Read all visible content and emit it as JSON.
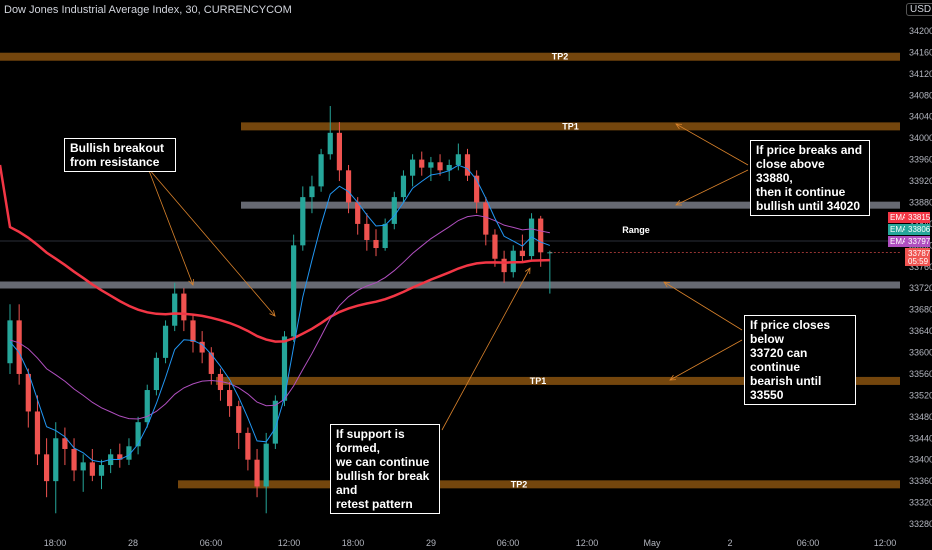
{
  "header": {
    "title": "Dow Jones Industrial Average Index, 30, CURRENCYCOM",
    "currency": "USD"
  },
  "colors": {
    "background": "#000000",
    "bull": "#26a69a",
    "bear": "#ef5350",
    "target_band": "#7a4a0e",
    "key_band": "#787b86",
    "ema_red": "#f23645",
    "ema_teal": "#2196f3",
    "ema_purple": "#b04fbf",
    "arrow": "#d9822b"
  },
  "annotations": {
    "breakout": "Bullish breakout\nfrom resistance",
    "breaks_above": "If price breaks and\nclose above 33880,\nthen it continue\nbullish until 34020",
    "closes_below": "If price closes below\n33720 can continue\nbearish until 33550",
    "support": "If support is formed,\nwe can continue\nbullish for break and\nretest pattern"
  },
  "chart_data": {
    "type": "candlestick",
    "title": "Dow Jones Industrial Average Index, 30, CURRENCYCOM",
    "ylim": [
      33260,
      34260
    ],
    "y_ticks": [
      34200,
      34160,
      34120,
      34080,
      34040,
      34000,
      33960,
      33920,
      33880,
      33840,
      33800,
      33760,
      33720,
      33680,
      33640,
      33600,
      33560,
      33520,
      33480,
      33440,
      33400,
      33360,
      33320,
      33280
    ],
    "x_ticks": [
      "18:00",
      "28",
      "06:00",
      "12:00",
      "18:00",
      "29",
      "06:00",
      "12:00",
      "May",
      "2",
      "06:00",
      "12:00"
    ],
    "grid": false,
    "levels": [
      {
        "label": "TP2",
        "value": 34152,
        "kind": "target",
        "from": "start"
      },
      {
        "label": "TP1",
        "value": 34022,
        "kind": "target",
        "from": "12:00"
      },
      {
        "label": "",
        "value": 33875,
        "kind": "key",
        "from": "12:00"
      },
      {
        "label": "Range",
        "value": 33808,
        "kind": "range",
        "from": "start"
      },
      {
        "label": "",
        "value": 33726,
        "kind": "key",
        "from": "start"
      },
      {
        "label": "TP1",
        "value": 33547,
        "kind": "target",
        "from": "06:00"
      },
      {
        "label": "TP2",
        "value": 33354,
        "kind": "target",
        "from": "28"
      }
    ],
    "ema_legend": [
      {
        "name": "EMA",
        "value": "33815",
        "color": "#f23645"
      },
      {
        "name": "EMA",
        "value": "33806",
        "color": "#26a69a"
      },
      {
        "name": "EMA",
        "value": "33797",
        "color": "#b04fbf"
      }
    ],
    "last_price": {
      "value": "33787",
      "countdown": "05:59"
    },
    "candles": [
      {
        "o": 33580,
        "h": 33690,
        "l": 33560,
        "c": 33660
      },
      {
        "o": 33660,
        "h": 33690,
        "l": 33540,
        "c": 33560
      },
      {
        "o": 33560,
        "h": 33570,
        "l": 33460,
        "c": 33490
      },
      {
        "o": 33490,
        "h": 33520,
        "l": 33390,
        "c": 33410
      },
      {
        "o": 33410,
        "h": 33440,
        "l": 33330,
        "c": 33360
      },
      {
        "o": 33360,
        "h": 33470,
        "l": 33300,
        "c": 33440
      },
      {
        "o": 33440,
        "h": 33460,
        "l": 33390,
        "c": 33420
      },
      {
        "o": 33420,
        "h": 33440,
        "l": 33360,
        "c": 33380
      },
      {
        "o": 33380,
        "h": 33410,
        "l": 33340,
        "c": 33395
      },
      {
        "o": 33395,
        "h": 33420,
        "l": 33360,
        "c": 33370
      },
      {
        "o": 33370,
        "h": 33400,
        "l": 33345,
        "c": 33390
      },
      {
        "o": 33390,
        "h": 33420,
        "l": 33375,
        "c": 33410
      },
      {
        "o": 33410,
        "h": 33430,
        "l": 33385,
        "c": 33400
      },
      {
        "o": 33400,
        "h": 33440,
        "l": 33390,
        "c": 33425
      },
      {
        "o": 33425,
        "h": 33480,
        "l": 33410,
        "c": 33470
      },
      {
        "o": 33470,
        "h": 33540,
        "l": 33460,
        "c": 33530
      },
      {
        "o": 33530,
        "h": 33600,
        "l": 33520,
        "c": 33590
      },
      {
        "o": 33590,
        "h": 33660,
        "l": 33580,
        "c": 33650
      },
      {
        "o": 33650,
        "h": 33730,
        "l": 33640,
        "c": 33710
      },
      {
        "o": 33710,
        "h": 33720,
        "l": 33640,
        "c": 33660
      },
      {
        "o": 33660,
        "h": 33670,
        "l": 33600,
        "c": 33620
      },
      {
        "o": 33620,
        "h": 33640,
        "l": 33580,
        "c": 33600
      },
      {
        "o": 33600,
        "h": 33610,
        "l": 33540,
        "c": 33560
      },
      {
        "o": 33560,
        "h": 33570,
        "l": 33510,
        "c": 33530
      },
      {
        "o": 33530,
        "h": 33545,
        "l": 33480,
        "c": 33500
      },
      {
        "o": 33500,
        "h": 33510,
        "l": 33420,
        "c": 33450
      },
      {
        "o": 33450,
        "h": 33460,
        "l": 33380,
        "c": 33400
      },
      {
        "o": 33400,
        "h": 33420,
        "l": 33330,
        "c": 33350
      },
      {
        "o": 33350,
        "h": 33450,
        "l": 33300,
        "c": 33430
      },
      {
        "o": 33430,
        "h": 33520,
        "l": 33420,
        "c": 33510
      },
      {
        "o": 33510,
        "h": 33640,
        "l": 33500,
        "c": 33630
      },
      {
        "o": 33630,
        "h": 33820,
        "l": 33620,
        "c": 33800
      },
      {
        "o": 33800,
        "h": 33910,
        "l": 33790,
        "c": 33890
      },
      {
        "o": 33890,
        "h": 33930,
        "l": 33860,
        "c": 33910
      },
      {
        "o": 33910,
        "h": 33980,
        "l": 33900,
        "c": 33970
      },
      {
        "o": 33970,
        "h": 34060,
        "l": 33960,
        "c": 34010
      },
      {
        "o": 34010,
        "h": 34030,
        "l": 33920,
        "c": 33940
      },
      {
        "o": 33940,
        "h": 33950,
        "l": 33860,
        "c": 33880
      },
      {
        "o": 33880,
        "h": 33890,
        "l": 33820,
        "c": 33840
      },
      {
        "o": 33840,
        "h": 33860,
        "l": 33790,
        "c": 33810
      },
      {
        "o": 33810,
        "h": 33830,
        "l": 33780,
        "c": 33795
      },
      {
        "o": 33795,
        "h": 33850,
        "l": 33790,
        "c": 33840
      },
      {
        "o": 33840,
        "h": 33900,
        "l": 33830,
        "c": 33890
      },
      {
        "o": 33890,
        "h": 33940,
        "l": 33880,
        "c": 33930
      },
      {
        "o": 33930,
        "h": 33970,
        "l": 33910,
        "c": 33960
      },
      {
        "o": 33960,
        "h": 33975,
        "l": 33930,
        "c": 33945
      },
      {
        "o": 33945,
        "h": 33965,
        "l": 33920,
        "c": 33955
      },
      {
        "o": 33955,
        "h": 33970,
        "l": 33930,
        "c": 33940
      },
      {
        "o": 33940,
        "h": 33960,
        "l": 33920,
        "c": 33950
      },
      {
        "o": 33950,
        "h": 33990,
        "l": 33940,
        "c": 33970
      },
      {
        "o": 33970,
        "h": 33980,
        "l": 33920,
        "c": 33930
      },
      {
        "o": 33930,
        "h": 33940,
        "l": 33860,
        "c": 33880
      },
      {
        "o": 33880,
        "h": 33890,
        "l": 33800,
        "c": 33820
      },
      {
        "o": 33820,
        "h": 33830,
        "l": 33760,
        "c": 33775
      },
      {
        "o": 33775,
        "h": 33790,
        "l": 33730,
        "c": 33750
      },
      {
        "o": 33750,
        "h": 33800,
        "l": 33740,
        "c": 33790
      },
      {
        "o": 33790,
        "h": 33820,
        "l": 33770,
        "c": 33780
      },
      {
        "o": 33780,
        "h": 33860,
        "l": 33770,
        "c": 33850
      },
      {
        "o": 33850,
        "h": 33855,
        "l": 33760,
        "c": 33787
      },
      {
        "o": 33787,
        "h": 33790,
        "l": 33710,
        "c": 33787
      }
    ]
  }
}
